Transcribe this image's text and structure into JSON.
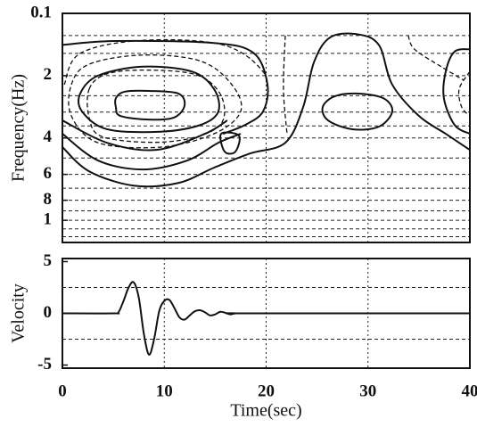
{
  "chart_data": [
    {
      "type": "contour",
      "ylabel": "Frequency(Hz)",
      "yscale": "log",
      "y_inverted": true,
      "xlim": [
        0,
        40
      ],
      "xticks": [
        0,
        10,
        20,
        30,
        40
      ],
      "grid_x": true,
      "ylim": [
        0.1,
        1.28
      ],
      "yticks": [
        0.1,
        {
          "value": 0.2,
          "label": "2"
        },
        {
          "value": 0.4,
          "label": "4"
        },
        {
          "value": 0.6,
          "label": "6"
        },
        {
          "value": 0.8,
          "label": "8"
        },
        1
      ],
      "grid_y": [
        0.128,
        0.156,
        0.2,
        0.25,
        0.3,
        0.35,
        0.4,
        0.5,
        0.6,
        0.7,
        0.8,
        0.9,
        1,
        1.1,
        1.2
      ],
      "color": "#111111",
      "contours": [
        {
          "dash": false,
          "closed": true,
          "x": [
            5.25,
            6.13,
            8.49,
            11.38,
            11.99,
            10.94,
            8.49,
            5.69,
            5.25
          ],
          "y": [
            0.257,
            0.239,
            0.237,
            0.244,
            0.279,
            0.319,
            0.326,
            0.313,
            0.284
          ]
        },
        {
          "dash": false,
          "closed": true,
          "x": [
            1.75,
            3.5,
            7.88,
            12.69,
            14.88,
            15.31,
            13.56,
            9.63,
            4.38,
            1.93
          ],
          "y": [
            0.244,
            0.2,
            0.181,
            0.191,
            0.232,
            0.298,
            0.346,
            0.373,
            0.363,
            0.298
          ]
        },
        {
          "dash": true,
          "closed": true,
          "x": [
            2.63,
            4.38,
            8.31,
            13.13,
            15.49,
            15.75,
            13.56,
            9.19,
            3.94,
            2.63
          ],
          "y": [
            0.232,
            0.196,
            0.188,
            0.198,
            0.245,
            0.33,
            0.39,
            0.42,
            0.395,
            0.32
          ]
        },
        {
          "dash": true,
          "closed": true,
          "x": [
            0.88,
            2.63,
            7.88,
            13.56,
            16.63,
            17.5,
            14.88,
            9.63,
            3.5,
            0.88
          ],
          "y": [
            0.221,
            0.176,
            0.159,
            0.17,
            0.221,
            0.298,
            0.382,
            0.443,
            0.422,
            0.313
          ]
        },
        {
          "dash": true,
          "closed": false,
          "x": [
            0.18,
            1.75,
            7.88,
            15.75,
            19.69,
            20.13
          ],
          "y": [
            0.221,
            0.156,
            0.135,
            0.142,
            0.191,
            0.262
          ]
        },
        {
          "dash": false,
          "closed": false,
          "x": [
            0,
            5.25,
            14.88,
            18.81,
            20.13,
            19.69,
            17.94,
            15.75
          ],
          "y": [
            0.142,
            0.136,
            0.139,
            0.156,
            0.221,
            0.298,
            0.346,
            0.382
          ]
        },
        {
          "dash": false,
          "closed": false,
          "x": [
            0,
            4.38,
            9.19,
            14,
            16.19
          ],
          "y": [
            0.329,
            0.422,
            0.457,
            0.382,
            0.329
          ]
        },
        {
          "dash": false,
          "closed": false,
          "x": [
            0,
            3.5,
            7.88,
            12.25,
            15.31,
            17.5
          ],
          "y": [
            0.382,
            0.514,
            0.568,
            0.514,
            0.422,
            0.382
          ]
        },
        {
          "dash": false,
          "closed": false,
          "x": [
            0,
            2.63,
            7,
            11.38,
            14.88,
            18.38,
            21.88,
            23.63,
            24.68,
            26.25,
            28.88,
            31.06,
            32.38,
            35,
            37.63,
            40
          ],
          "y": [
            0.443,
            0.58,
            0.68,
            0.66,
            0.557,
            0.476,
            0.422,
            0.284,
            0.173,
            0.131,
            0.126,
            0.142,
            0.221,
            0.313,
            0.382,
            0.457
          ]
        },
        {
          "dash": false,
          "closed": true,
          "x": [
            15.58,
            17.33,
            16.98,
            15.93
          ],
          "y": [
            0.382,
            0.39,
            0.466,
            0.466
          ]
        },
        {
          "dash": false,
          "closed": true,
          "x": [
            25.55,
            26.69,
            28.88,
            31.5,
            32.38,
            31.06,
            28.44,
            26.08
          ],
          "y": [
            0.284,
            0.252,
            0.244,
            0.257,
            0.298,
            0.353,
            0.363,
            0.329
          ]
        },
        {
          "dash": false,
          "closed": false,
          "x": [
            40,
            38.5,
            37.63,
            37.45,
            38.5,
            40
          ],
          "y": [
            0.149,
            0.153,
            0.191,
            0.257,
            0.346,
            0.382
          ]
        },
        {
          "dash": true,
          "closed": false,
          "x": [
            21.88,
            21.7,
            22.05
          ],
          "y": [
            0.128,
            0.232,
            0.382
          ]
        },
        {
          "dash": true,
          "closed": false,
          "x": [
            33.95,
            34.56,
            37.19,
            39.38
          ],
          "y": [
            0.128,
            0.149,
            0.181,
            0.21
          ]
        },
        {
          "dash": true,
          "closed": false,
          "x": [
            40,
            38.95,
            39.2,
            40
          ],
          "y": [
            0.191,
            0.232,
            0.284,
            0.313
          ]
        }
      ]
    },
    {
      "type": "line",
      "ylabel": "Velocity",
      "xlabel": "Time(sec)",
      "xlim": [
        0,
        40
      ],
      "xticks": [
        0,
        10,
        20,
        30,
        40
      ],
      "grid_x": true,
      "ylim": [
        -5.3,
        5.3
      ],
      "yticks": [
        -5,
        0,
        5
      ],
      "grid_y": [
        -2.5,
        2.5
      ],
      "color": "#111111",
      "x": [
        0,
        5,
        5.5,
        6,
        6.5,
        7,
        7.5,
        8,
        8.5,
        9,
        9.5,
        10,
        10.5,
        11,
        11.5,
        12,
        12.5,
        13,
        13.5,
        14,
        14.5,
        15,
        15.5,
        16,
        16.5,
        17,
        18,
        40
      ],
      "values": [
        0,
        0,
        0.1,
        1.2,
        2.5,
        3,
        1.5,
        -2,
        -4,
        -2.5,
        0.2,
        1.2,
        1.3,
        0.5,
        -0.4,
        -0.6,
        -0.2,
        0.2,
        0.3,
        0.1,
        -0.2,
        -0.1,
        0.15,
        0.05,
        -0.1,
        0,
        0,
        0
      ]
    }
  ]
}
